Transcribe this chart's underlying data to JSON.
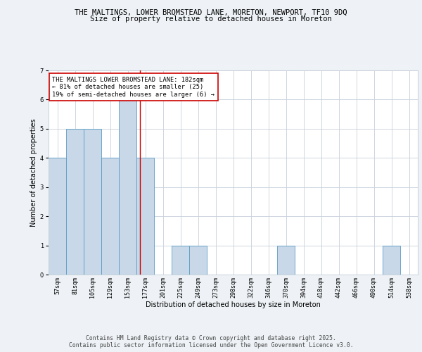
{
  "title_line1": "THE MALTINGS, LOWER BROMSTEAD LANE, MORETON, NEWPORT, TF10 9DQ",
  "title_line2": "Size of property relative to detached houses in Moreton",
  "xlabel": "Distribution of detached houses by size in Moreton",
  "ylabel": "Number of detached properties",
  "bins": [
    "57sqm",
    "81sqm",
    "105sqm",
    "129sqm",
    "153sqm",
    "177sqm",
    "201sqm",
    "225sqm",
    "249sqm",
    "273sqm",
    "298sqm",
    "322sqm",
    "346sqm",
    "370sqm",
    "394sqm",
    "418sqm",
    "442sqm",
    "466sqm",
    "490sqm",
    "514sqm",
    "538sqm"
  ],
  "bar_values": [
    4,
    5,
    5,
    4,
    6,
    4,
    0,
    1,
    1,
    0,
    0,
    0,
    0,
    1,
    0,
    0,
    0,
    0,
    0,
    1,
    0
  ],
  "bar_color": "#c8d8e8",
  "bar_edge_color": "#5a9cc5",
  "subject_line_color": "#cc0000",
  "annotation_text": "THE MALTINGS LOWER BROMSTEAD LANE: 182sqm\n← 81% of detached houses are smaller (25)\n19% of semi-detached houses are larger (6) →",
  "annotation_box_color": "#ffffff",
  "annotation_box_edge": "#cc0000",
  "ylim": [
    0,
    7
  ],
  "yticks": [
    0,
    1,
    2,
    3,
    4,
    5,
    6,
    7
  ],
  "bg_color": "#eef2f6",
  "plot_bg_color": "#ffffff",
  "grid_color": "#c8d0da",
  "footer_text": "Contains HM Land Registry data © Crown copyright and database right 2025.\nContains public sector information licensed under the Open Government Licence v3.0.",
  "title_fontsize": 7.5,
  "subtitle_fontsize": 7.5,
  "axis_label_fontsize": 7,
  "tick_fontsize": 6,
  "annotation_fontsize": 6.2,
  "footer_fontsize": 5.8,
  "n_bins": 21,
  "subject_bin_index": 5
}
